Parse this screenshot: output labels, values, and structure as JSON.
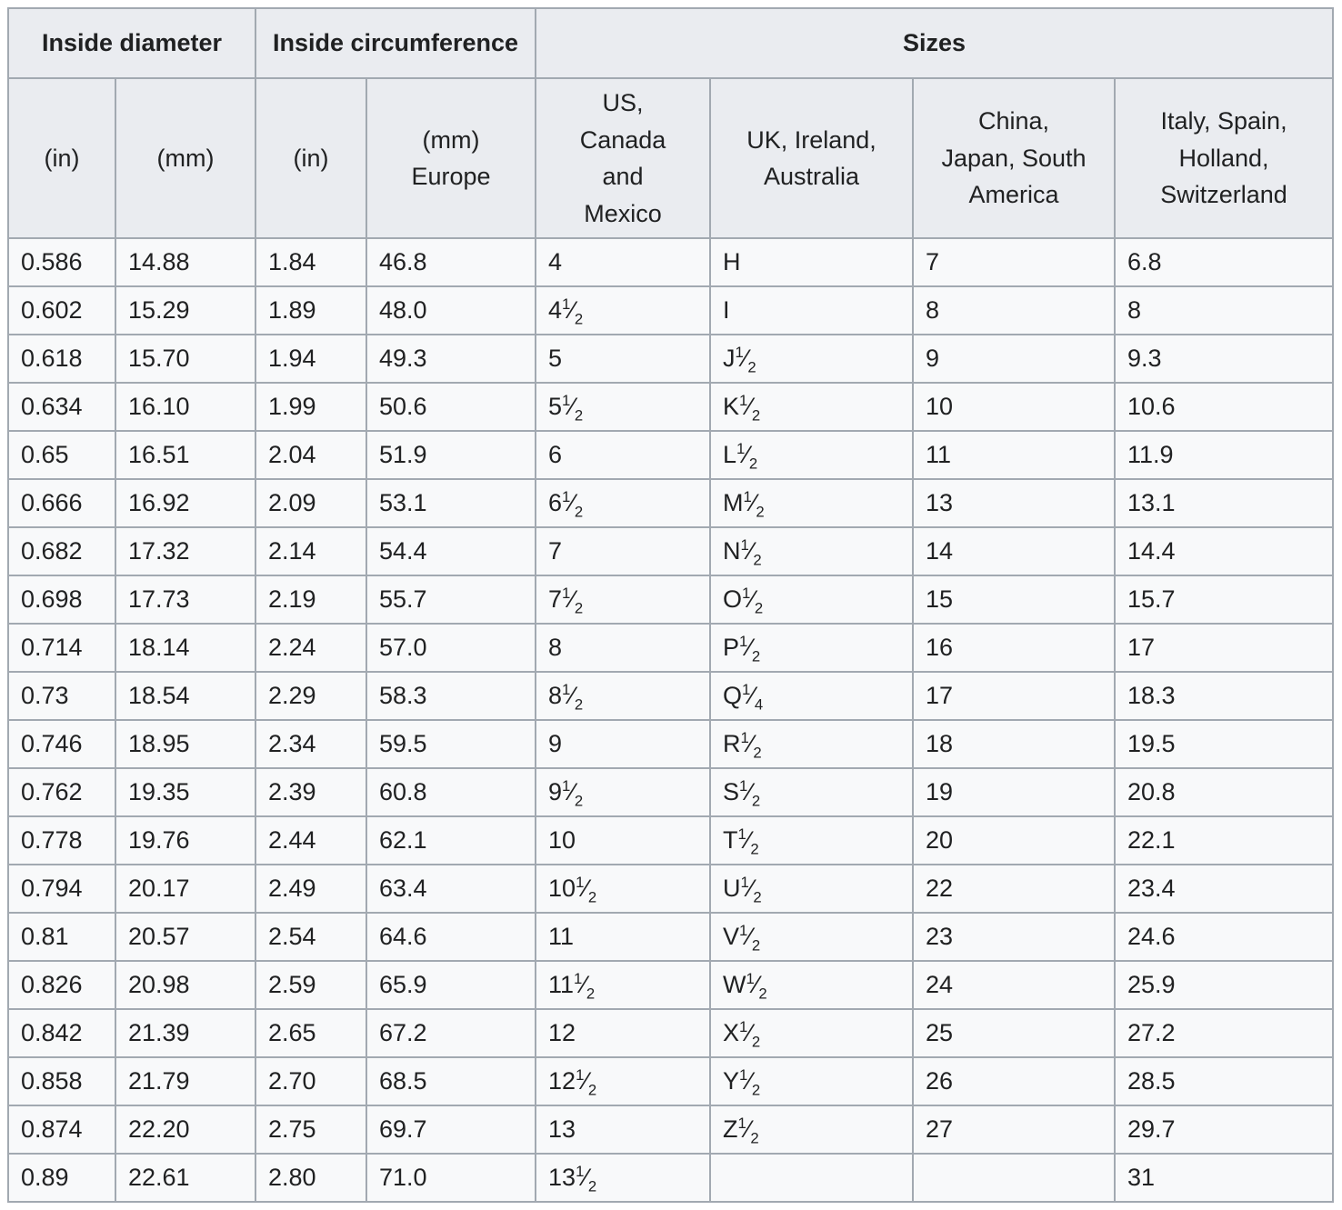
{
  "colors": {
    "page-bg": "#ffffff",
    "header-bg": "#eaecf0",
    "cell-bg": "#f8f9fa",
    "border": "#a2a9b1",
    "text": "#202122"
  },
  "table": {
    "group_headers": [
      {
        "label": "Inside diameter",
        "colspan": 2
      },
      {
        "label": "Inside circumference",
        "colspan": 2
      },
      {
        "label": "Sizes",
        "colspan": 4
      }
    ],
    "column_headers": [
      "(in)",
      "(mm)",
      "(in)",
      "(mm)\nEurope",
      "US,\nCanada\nand\nMexico",
      "UK, Ireland,\nAustralia",
      "China,\nJapan, South\nAmerica",
      "Italy, Spain,\nHolland,\nSwitzerland"
    ],
    "rows": [
      [
        "0.586",
        "14.88",
        "1.84",
        "46.8",
        "4",
        "H",
        "7",
        "6.8"
      ],
      [
        "0.602",
        "15.29",
        "1.89",
        "48.0",
        "4 1/2",
        "I",
        "8",
        "8"
      ],
      [
        "0.618",
        "15.70",
        "1.94",
        "49.3",
        "5",
        "J 1/2",
        "9",
        "9.3"
      ],
      [
        "0.634",
        "16.10",
        "1.99",
        "50.6",
        "5 1/2",
        "K 1/2",
        "10",
        "10.6"
      ],
      [
        "0.65",
        "16.51",
        "2.04",
        "51.9",
        "6",
        "L 1/2",
        "11",
        "11.9"
      ],
      [
        "0.666",
        "16.92",
        "2.09",
        "53.1",
        "6 1/2",
        "M 1/2",
        "13",
        "13.1"
      ],
      [
        "0.682",
        "17.32",
        "2.14",
        "54.4",
        "7",
        "N 1/2",
        "14",
        "14.4"
      ],
      [
        "0.698",
        "17.73",
        "2.19",
        "55.7",
        "7 1/2",
        "O 1/2",
        "15",
        "15.7"
      ],
      [
        "0.714",
        "18.14",
        "2.24",
        "57.0",
        "8",
        "P 1/2",
        "16",
        "17"
      ],
      [
        "0.73",
        "18.54",
        "2.29",
        "58.3",
        "8 1/2",
        "Q 1/4",
        "17",
        "18.3"
      ],
      [
        "0.746",
        "18.95",
        "2.34",
        "59.5",
        "9",
        "R 1/2",
        "18",
        "19.5"
      ],
      [
        "0.762",
        "19.35",
        "2.39",
        "60.8",
        "9 1/2",
        "S 1/2",
        "19",
        "20.8"
      ],
      [
        "0.778",
        "19.76",
        "2.44",
        "62.1",
        "10",
        "T 1/2",
        "20",
        "22.1"
      ],
      [
        "0.794",
        "20.17",
        "2.49",
        "63.4",
        "10 1/2",
        "U 1/2",
        "22",
        "23.4"
      ],
      [
        "0.81",
        "20.57",
        "2.54",
        "64.6",
        "11",
        "V 1/2",
        "23",
        "24.6"
      ],
      [
        "0.826",
        "20.98",
        "2.59",
        "65.9",
        "11 1/2",
        "W 1/2",
        "24",
        "25.9"
      ],
      [
        "0.842",
        "21.39",
        "2.65",
        "67.2",
        "12",
        "X 1/2",
        "25",
        "27.2"
      ],
      [
        "0.858",
        "21.79",
        "2.70",
        "68.5",
        "12 1/2",
        "Y 1/2",
        "26",
        "28.5"
      ],
      [
        "0.874",
        "22.20",
        "2.75",
        "69.7",
        "13",
        "Z 1/2",
        "27",
        "29.7"
      ],
      [
        "0.89",
        "22.61",
        "2.80",
        "71.0",
        "13 1/2",
        "",
        "",
        "31"
      ]
    ]
  }
}
